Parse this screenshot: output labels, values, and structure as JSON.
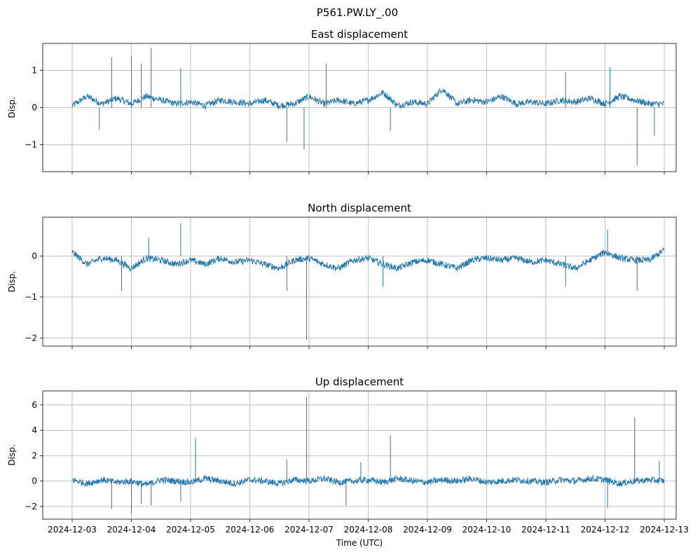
{
  "figure": {
    "suptitle": "P561.PW.LY_.00"
  },
  "chart_data": [
    {
      "type": "line",
      "title": "East displacement",
      "xlabel": "",
      "ylabel": "Disp.",
      "x_range": [
        "2024-12-03",
        "2024-12-13"
      ],
      "ylim": [
        -1.72,
        1.72
      ],
      "yticks": [
        -1,
        0,
        1
      ],
      "grid": true,
      "series": [
        {
          "color": "#1f77b4",
          "x": [
            "2024-12-03T00:00",
            "2024-12-03T06:00",
            "2024-12-03T12:00",
            "2024-12-03T18:00",
            "2024-12-04T00:00",
            "2024-12-04T06:00",
            "2024-12-04T12:00",
            "2024-12-04T18:00",
            "2024-12-05T00:00",
            "2024-12-05T06:00",
            "2024-12-05T12:00",
            "2024-12-05T18:00",
            "2024-12-06T00:00",
            "2024-12-06T06:00",
            "2024-12-06T12:00",
            "2024-12-06T18:00",
            "2024-12-07T00:00",
            "2024-12-07T06:00",
            "2024-12-07T12:00",
            "2024-12-07T18:00",
            "2024-12-08T00:00",
            "2024-12-08T06:00",
            "2024-12-08T12:00",
            "2024-12-08T18:00",
            "2024-12-09T00:00",
            "2024-12-09T06:00",
            "2024-12-09T12:00",
            "2024-12-09T18:00",
            "2024-12-10T00:00",
            "2024-12-10T06:00",
            "2024-12-10T12:00",
            "2024-12-10T18:00",
            "2024-12-11T00:00",
            "2024-12-11T06:00",
            "2024-12-11T12:00",
            "2024-12-11T18:00",
            "2024-12-12T00:00",
            "2024-12-12T06:00",
            "2024-12-12T12:00",
            "2024-12-12T18:00",
            "2024-12-13T00:00"
          ],
          "y": [
            0.05,
            0.3,
            0.1,
            0.25,
            0.1,
            0.3,
            0.2,
            0.1,
            0.15,
            0.05,
            0.2,
            0.15,
            0.1,
            0.2,
            0.05,
            0.1,
            0.3,
            0.1,
            0.2,
            0.1,
            0.2,
            0.4,
            0.05,
            0.15,
            0.1,
            0.5,
            0.1,
            0.2,
            0.15,
            0.3,
            0.1,
            0.15,
            0.1,
            0.2,
            0.15,
            0.25,
            0.1,
            0.3,
            0.2,
            0.1,
            0.1
          ],
          "spikes": [
            {
              "x": "2024-12-03T11:00",
              "y": -0.6
            },
            {
              "x": "2024-12-03T16:00",
              "y": 1.35
            },
            {
              "x": "2024-12-04T00:00",
              "y": 1.38
            },
            {
              "x": "2024-12-04T04:00",
              "y": 1.18
            },
            {
              "x": "2024-12-04T08:00",
              "y": 1.6
            },
            {
              "x": "2024-12-04T20:00",
              "y": 1.05
            },
            {
              "x": "2024-12-06T15:00",
              "y": -0.92
            },
            {
              "x": "2024-12-06T22:00",
              "y": -1.12
            },
            {
              "x": "2024-12-07T07:00",
              "y": 1.18
            },
            {
              "x": "2024-12-08T09:00",
              "y": -0.62
            },
            {
              "x": "2024-12-11T08:00",
              "y": 0.95
            },
            {
              "x": "2024-12-12T02:00",
              "y": 1.08
            },
            {
              "x": "2024-12-12T13:00",
              "y": -1.55
            },
            {
              "x": "2024-12-12T20:00",
              "y": -0.75
            }
          ]
        }
      ]
    },
    {
      "type": "line",
      "title": "North displacement",
      "xlabel": "",
      "ylabel": "Disp.",
      "x_range": [
        "2024-12-03",
        "2024-12-13"
      ],
      "ylim": [
        -2.2,
        0.95
      ],
      "yticks": [
        -2,
        -1,
        0
      ],
      "grid": true,
      "series": [
        {
          "color": "#1f77b4",
          "x": [
            "2024-12-03T00:00",
            "2024-12-03T06:00",
            "2024-12-03T12:00",
            "2024-12-03T18:00",
            "2024-12-04T00:00",
            "2024-12-04T06:00",
            "2024-12-04T12:00",
            "2024-12-04T18:00",
            "2024-12-05T00:00",
            "2024-12-05T06:00",
            "2024-12-05T12:00",
            "2024-12-05T18:00",
            "2024-12-06T00:00",
            "2024-12-06T06:00",
            "2024-12-06T12:00",
            "2024-12-06T18:00",
            "2024-12-07T00:00",
            "2024-12-07T06:00",
            "2024-12-07T12:00",
            "2024-12-07T18:00",
            "2024-12-08T00:00",
            "2024-12-08T06:00",
            "2024-12-08T12:00",
            "2024-12-08T18:00",
            "2024-12-09T00:00",
            "2024-12-09T06:00",
            "2024-12-09T12:00",
            "2024-12-09T18:00",
            "2024-12-10T00:00",
            "2024-12-10T06:00",
            "2024-12-10T12:00",
            "2024-12-10T18:00",
            "2024-12-11T00:00",
            "2024-12-11T06:00",
            "2024-12-11T12:00",
            "2024-12-11T18:00",
            "2024-12-12T00:00",
            "2024-12-12T06:00",
            "2024-12-12T12:00",
            "2024-12-12T18:00",
            "2024-12-13T00:00"
          ],
          "y": [
            0.1,
            -0.2,
            -0.05,
            -0.1,
            -0.3,
            -0.05,
            -0.1,
            -0.2,
            -0.1,
            -0.2,
            -0.05,
            -0.15,
            -0.1,
            -0.2,
            -0.3,
            -0.1,
            -0.05,
            -0.2,
            -0.3,
            -0.1,
            -0.05,
            -0.2,
            -0.3,
            -0.15,
            -0.1,
            -0.2,
            -0.3,
            -0.1,
            -0.05,
            -0.1,
            -0.05,
            -0.15,
            -0.1,
            -0.2,
            -0.3,
            -0.1,
            0.1,
            -0.05,
            -0.1,
            -0.1,
            0.15
          ],
          "spikes": [
            {
              "x": "2024-12-03T20:00",
              "y": -0.85
            },
            {
              "x": "2024-12-04T07:00",
              "y": 0.45
            },
            {
              "x": "2024-12-04T20:00",
              "y": 0.8
            },
            {
              "x": "2024-12-06T15:00",
              "y": -0.85
            },
            {
              "x": "2024-12-06T23:00",
              "y": -2.05
            },
            {
              "x": "2024-12-08T06:00",
              "y": -0.75
            },
            {
              "x": "2024-12-11T08:00",
              "y": -0.75
            },
            {
              "x": "2024-12-12T01:00",
              "y": 0.65
            },
            {
              "x": "2024-12-12T13:00",
              "y": -0.85
            }
          ]
        }
      ]
    },
    {
      "type": "line",
      "title": "Up displacement",
      "xlabel": "Time (UTC)",
      "ylabel": "Disp.",
      "x_range": [
        "2024-12-03",
        "2024-12-13"
      ],
      "ylim": [
        -3.0,
        7.1
      ],
      "yticks": [
        -2,
        0,
        2,
        4,
        6
      ],
      "grid": true,
      "xticks": [
        "2024-12-03",
        "2024-12-04",
        "2024-12-05",
        "2024-12-06",
        "2024-12-07",
        "2024-12-08",
        "2024-12-09",
        "2024-12-10",
        "2024-12-11",
        "2024-12-12",
        "2024-12-13"
      ],
      "series": [
        {
          "color": "#1f77b4",
          "x": [
            "2024-12-03T00:00",
            "2024-12-03T06:00",
            "2024-12-03T12:00",
            "2024-12-03T18:00",
            "2024-12-04T00:00",
            "2024-12-04T06:00",
            "2024-12-04T12:00",
            "2024-12-04T18:00",
            "2024-12-05T00:00",
            "2024-12-05T06:00",
            "2024-12-05T12:00",
            "2024-12-05T18:00",
            "2024-12-06T00:00",
            "2024-12-06T06:00",
            "2024-12-06T12:00",
            "2024-12-06T18:00",
            "2024-12-07T00:00",
            "2024-12-07T06:00",
            "2024-12-07T12:00",
            "2024-12-07T18:00",
            "2024-12-08T00:00",
            "2024-12-08T06:00",
            "2024-12-08T12:00",
            "2024-12-08T18:00",
            "2024-12-09T00:00",
            "2024-12-09T06:00",
            "2024-12-09T12:00",
            "2024-12-09T18:00",
            "2024-12-10T00:00",
            "2024-12-10T06:00",
            "2024-12-10T12:00",
            "2024-12-10T18:00",
            "2024-12-11T00:00",
            "2024-12-11T06:00",
            "2024-12-11T12:00",
            "2024-12-11T18:00",
            "2024-12-12T00:00",
            "2024-12-12T06:00",
            "2024-12-12T12:00",
            "2024-12-12T18:00",
            "2024-12-13T00:00"
          ],
          "y": [
            0.1,
            -0.2,
            0.1,
            -0.1,
            0.0,
            -0.3,
            0.1,
            0.0,
            -0.1,
            0.2,
            0.0,
            -0.2,
            0.1,
            0.0,
            -0.2,
            0.1,
            0.0,
            0.2,
            -0.1,
            0.0,
            0.1,
            -0.1,
            0.2,
            0.0,
            -0.1,
            0.1,
            0.0,
            0.2,
            -0.1,
            0.0,
            0.1,
            0.0,
            -0.1,
            0.1,
            0.0,
            0.2,
            0.1,
            -0.2,
            0.0,
            0.1,
            0.0
          ],
          "spikes": [
            {
              "x": "2024-12-03T16:00",
              "y": -2.2
            },
            {
              "x": "2024-12-04T00:00",
              "y": -2.6
            },
            {
              "x": "2024-12-04T04:00",
              "y": -1.8
            },
            {
              "x": "2024-12-04T08:00",
              "y": -1.9
            },
            {
              "x": "2024-12-04T20:00",
              "y": -1.6
            },
            {
              "x": "2024-12-05T02:00",
              "y": 3.4
            },
            {
              "x": "2024-12-06T15:00",
              "y": 1.7
            },
            {
              "x": "2024-12-06T23:00",
              "y": 6.6
            },
            {
              "x": "2024-12-07T15:00",
              "y": -1.9
            },
            {
              "x": "2024-12-07T21:00",
              "y": 1.5
            },
            {
              "x": "2024-12-08T09:00",
              "y": 3.6
            },
            {
              "x": "2024-12-12T01:00",
              "y": -2.1
            },
            {
              "x": "2024-12-12T12:00",
              "y": 5.0
            },
            {
              "x": "2024-12-12T22:00",
              "y": 1.6
            }
          ]
        }
      ]
    }
  ]
}
